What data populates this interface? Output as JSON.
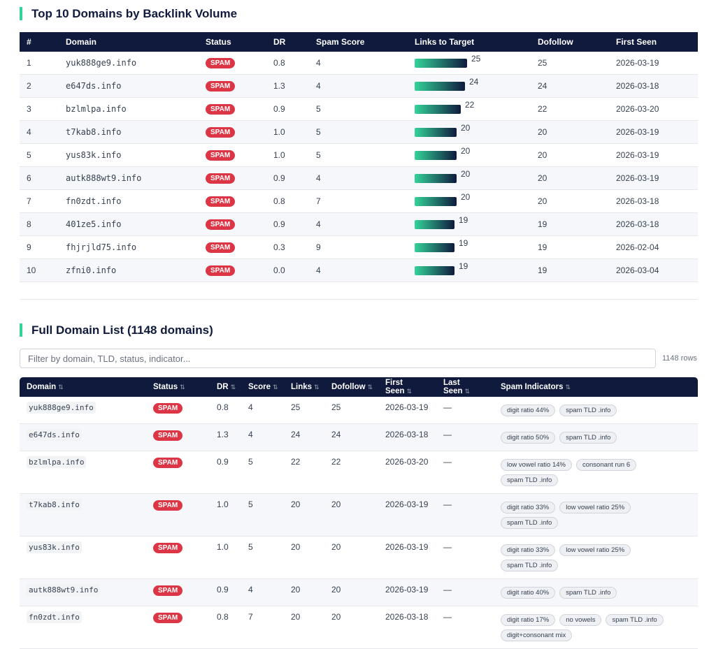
{
  "top10": {
    "title": "Top 10 Domains by Backlink Volume",
    "columns": [
      "#",
      "Domain",
      "Status",
      "DR",
      "Spam Score",
      "Links to Target",
      "Dofollow",
      "First Seen"
    ],
    "rows": [
      [
        1,
        "yuk888ge9.info",
        "SPAM",
        "0.8",
        4,
        25,
        25,
        "2026-03-19"
      ],
      [
        2,
        "e647ds.info",
        "SPAM",
        "1.3",
        4,
        24,
        24,
        "2026-03-18"
      ],
      [
        3,
        "bzlmlpa.info",
        "SPAM",
        "0.9",
        5,
        22,
        22,
        "2026-03-20"
      ],
      [
        4,
        "t7kab8.info",
        "SPAM",
        "1.0",
        5,
        20,
        20,
        "2026-03-19"
      ],
      [
        5,
        "yus83k.info",
        "SPAM",
        "1.0",
        5,
        20,
        20,
        "2026-03-19"
      ],
      [
        6,
        "autk888wt9.info",
        "SPAM",
        "0.9",
        4,
        20,
        20,
        "2026-03-19"
      ],
      [
        7,
        "fn0zdt.info",
        "SPAM",
        "0.8",
        7,
        20,
        20,
        "2026-03-18"
      ],
      [
        8,
        "401ze5.info",
        "SPAM",
        "0.9",
        4,
        19,
        19,
        "2026-03-18"
      ],
      [
        9,
        "fhjrjld75.info",
        "SPAM",
        "0.3",
        9,
        19,
        19,
        "2026-02-04"
      ],
      [
        10,
        "zfni0.info",
        "SPAM",
        "0.0",
        4,
        19,
        19,
        "2026-03-04"
      ]
    ]
  },
  "full": {
    "title": "Full Domain List (1148 domains)",
    "filter_placeholder": "Filter by domain, TLD, status, indicator...",
    "row_count": "1148 rows",
    "sort_icon": "⇅",
    "columns": [
      "Domain",
      "Status",
      "DR",
      "Score",
      "Links",
      "Dofollow",
      "First Seen",
      "Last Seen",
      "Spam Indicators"
    ],
    "rows": [
      [
        "yuk888ge9.info",
        "SPAM",
        "0.8",
        4,
        25,
        25,
        "2026-03-19",
        "—",
        [
          "digit ratio 44%",
          "spam TLD .info"
        ]
      ],
      [
        "e647ds.info",
        "SPAM",
        "1.3",
        4,
        24,
        24,
        "2026-03-18",
        "—",
        [
          "digit ratio 50%",
          "spam TLD .info"
        ]
      ],
      [
        "bzlmlpa.info",
        "SPAM",
        "0.9",
        5,
        22,
        22,
        "2026-03-20",
        "—",
        [
          "low vowel ratio 14%",
          "consonant run 6",
          "spam TLD .info"
        ]
      ],
      [
        "t7kab8.info",
        "SPAM",
        "1.0",
        5,
        20,
        20,
        "2026-03-19",
        "—",
        [
          "digit ratio 33%",
          "low vowel ratio 25%",
          "spam TLD .info"
        ]
      ],
      [
        "yus83k.info",
        "SPAM",
        "1.0",
        5,
        20,
        20,
        "2026-03-19",
        "—",
        [
          "digit ratio 33%",
          "low vowel ratio 25%",
          "spam TLD .info"
        ]
      ],
      [
        "autk888wt9.info",
        "SPAM",
        "0.9",
        4,
        20,
        20,
        "2026-03-19",
        "—",
        [
          "digit ratio 40%",
          "spam TLD .info"
        ]
      ],
      [
        "fn0zdt.info",
        "SPAM",
        "0.8",
        7,
        20,
        20,
        "2026-03-18",
        "—",
        [
          "digit ratio 17%",
          "no vowels",
          "spam TLD .info",
          "digit+consonant mix"
        ]
      ]
    ]
  }
}
